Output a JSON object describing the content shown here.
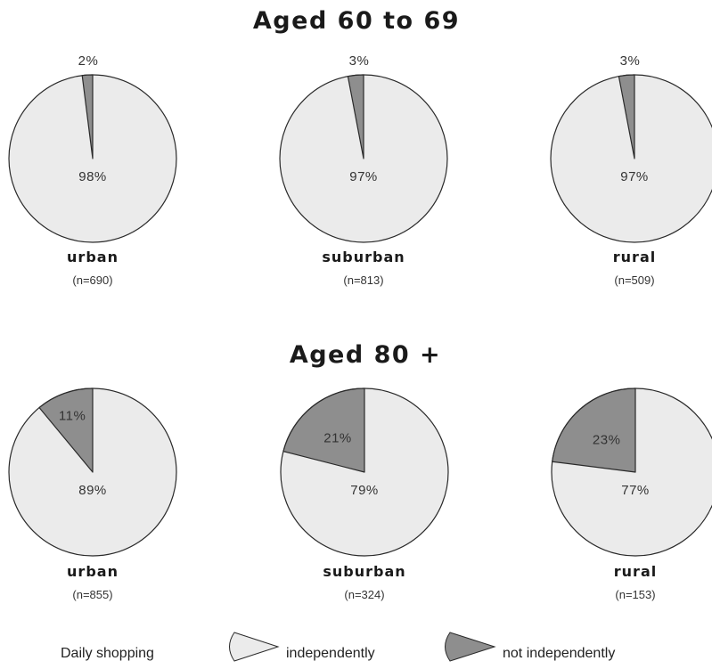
{
  "chart_data": {
    "type": "pie",
    "groups": [
      {
        "title": "Aged 60 to 69",
        "pies": [
          {
            "category": "urban",
            "n": "(n=690)",
            "slices": [
              {
                "series": "independently",
                "value": 98,
                "label": "98%"
              },
              {
                "series": "not independently",
                "value": 2,
                "label": "2%"
              }
            ]
          },
          {
            "category": "suburban",
            "n": "(n=813)",
            "slices": [
              {
                "series": "independently",
                "value": 97,
                "label": "97%"
              },
              {
                "series": "not independently",
                "value": 3,
                "label": "3%"
              }
            ]
          },
          {
            "category": "rural",
            "n": "(n=509)",
            "slices": [
              {
                "series": "independently",
                "value": 97,
                "label": "97%"
              },
              {
                "series": "not independently",
                "value": 3,
                "label": "3%"
              }
            ]
          }
        ]
      },
      {
        "title": "Aged 80 +",
        "pies": [
          {
            "category": "urban",
            "n": "(n=855)",
            "slices": [
              {
                "series": "independently",
                "value": 89,
                "label": "89%"
              },
              {
                "series": "not independently",
                "value": 11,
                "label": "11%"
              }
            ]
          },
          {
            "category": "suburban",
            "n": "(n=324)",
            "slices": [
              {
                "series": "independently",
                "value": 79,
                "label": "79%"
              },
              {
                "series": "not independently",
                "value": 21,
                "label": "21%"
              }
            ]
          },
          {
            "category": "rural",
            "n": "(n=153)",
            "slices": [
              {
                "series": "independently",
                "value": 77,
                "label": "77%"
              },
              {
                "series": "not independently",
                "value": 23,
                "label": "23%"
              }
            ]
          }
        ]
      }
    ],
    "legend": {
      "title": "Daily shopping",
      "items": [
        {
          "label": "independently",
          "color": "#ebebeb"
        },
        {
          "label": "not independently",
          "color": "#8e8e8e"
        }
      ],
      "placement": "bottom"
    },
    "colors": {
      "independently": "#ebebeb",
      "not independently": "#8e8e8e",
      "stroke": "#2a2a2a"
    }
  }
}
